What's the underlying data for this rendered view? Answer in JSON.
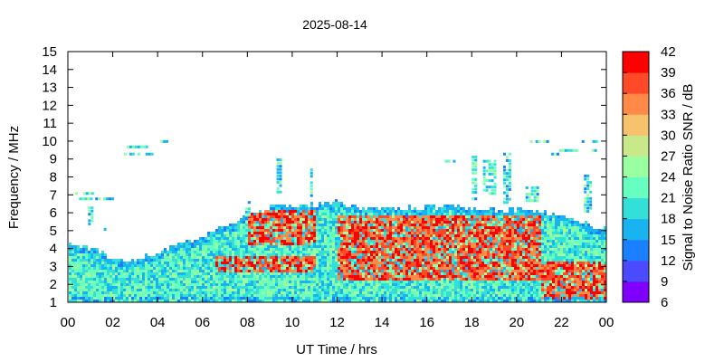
{
  "chart_data": {
    "type": "heatmap",
    "title": "2025-08-14",
    "xlabel": "UT Time / hrs",
    "ylabel": "Frequency / MHz",
    "colorbar_label": "Signal to Noise Ratio SNR / dB",
    "x_ticks": [
      "00",
      "02",
      "04",
      "06",
      "08",
      "10",
      "12",
      "14",
      "16",
      "18",
      "20",
      "22",
      "00"
    ],
    "y_ticks": [
      "1",
      "2",
      "3",
      "4",
      "5",
      "6",
      "7",
      "8",
      "9",
      "10",
      "11",
      "12",
      "13",
      "14",
      "15"
    ],
    "xlim": [
      0,
      24
    ],
    "ylim": [
      1,
      15
    ],
    "colorbar": {
      "ticks": [
        "6",
        "9",
        "12",
        "15",
        "18",
        "21",
        "24",
        "27",
        "30",
        "33",
        "36",
        "39",
        "42"
      ],
      "range": [
        6,
        42
      ],
      "colors": [
        "#8000ff",
        "#4a4aff",
        "#1a80ff",
        "#19b3ef",
        "#33e0d9",
        "#66ffc0",
        "#99ffa0",
        "#c8e88a",
        "#f7c26c",
        "#ff8a48",
        "#ff4a2a",
        "#ff0000"
      ]
    },
    "upper_envelope_mhz": [
      {
        "t": 0,
        "f": 4.3
      },
      {
        "t": 1,
        "f": 4.1
      },
      {
        "t": 2,
        "f": 3.5
      },
      {
        "t": 3,
        "f": 3.4
      },
      {
        "t": 4,
        "f": 3.9
      },
      {
        "t": 5,
        "f": 4.3
      },
      {
        "t": 6,
        "f": 4.8
      },
      {
        "t": 7,
        "f": 5.4
      },
      {
        "t": 8,
        "f": 6.0
      },
      {
        "t": 9,
        "f": 6.4
      },
      {
        "t": 10,
        "f": 6.5
      },
      {
        "t": 11,
        "f": 6.5
      },
      {
        "t": 12,
        "f": 6.7
      },
      {
        "t": 13,
        "f": 6.3
      },
      {
        "t": 14,
        "f": 6.3
      },
      {
        "t": 15,
        "f": 6.3
      },
      {
        "t": 16,
        "f": 6.4
      },
      {
        "t": 17,
        "f": 6.5
      },
      {
        "t": 18,
        "f": 6.3
      },
      {
        "t": 19,
        "f": 6.2
      },
      {
        "t": 20,
        "f": 6.2
      },
      {
        "t": 21,
        "f": 6.2
      },
      {
        "t": 22,
        "f": 5.9
      },
      {
        "t": 23,
        "f": 5.5
      },
      {
        "t": 24,
        "f": 5.1
      }
    ],
    "high_snr_regions": [
      {
        "t_start": 6.5,
        "t_end": 11,
        "f_low": 2.8,
        "f_high": 3.6
      },
      {
        "t_start": 8,
        "t_end": 11,
        "f_low": 4.3,
        "f_high": 6.2
      },
      {
        "t_start": 12,
        "t_end": 21,
        "f_low": 2.3,
        "f_high": 5.9
      },
      {
        "t_start": 21,
        "t_end": 24,
        "f_low": 1.2,
        "f_high": 3.4
      }
    ]
  }
}
